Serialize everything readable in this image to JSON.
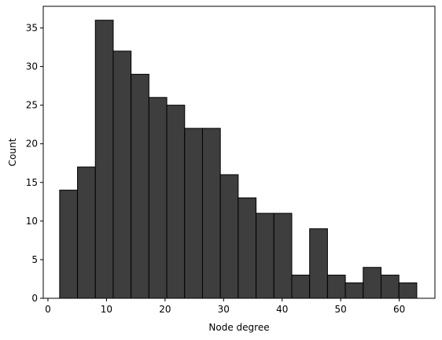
{
  "chart_data": {
    "type": "bar",
    "title": "",
    "xlabel": "Node degree",
    "ylabel": "Count",
    "xlim": [
      -0.8,
      66.1
    ],
    "ylim": [
      0,
      37.8
    ],
    "xticks": [
      0,
      10,
      20,
      30,
      40,
      50,
      60
    ],
    "yticks": [
      0,
      5,
      10,
      15,
      20,
      25,
      30,
      35
    ],
    "grid": false,
    "bar_fill": "#3e3e3e",
    "bar_edge": "#000000",
    "bins": [
      {
        "start": 2.0,
        "end": 5.05,
        "count": 14
      },
      {
        "start": 5.05,
        "end": 8.1,
        "count": 17
      },
      {
        "start": 8.1,
        "end": 11.15,
        "count": 36
      },
      {
        "start": 11.15,
        "end": 14.2,
        "count": 32
      },
      {
        "start": 14.2,
        "end": 17.25,
        "count": 29
      },
      {
        "start": 17.25,
        "end": 20.3,
        "count": 26
      },
      {
        "start": 20.3,
        "end": 23.35,
        "count": 25
      },
      {
        "start": 23.35,
        "end": 26.4,
        "count": 22
      },
      {
        "start": 26.4,
        "end": 29.45,
        "count": 22
      },
      {
        "start": 29.45,
        "end": 32.5,
        "count": 16
      },
      {
        "start": 32.5,
        "end": 35.55,
        "count": 13
      },
      {
        "start": 35.55,
        "end": 38.6,
        "count": 11
      },
      {
        "start": 38.6,
        "end": 41.65,
        "count": 11
      },
      {
        "start": 41.65,
        "end": 44.7,
        "count": 3
      },
      {
        "start": 44.7,
        "end": 47.75,
        "count": 9
      },
      {
        "start": 47.75,
        "end": 50.8,
        "count": 3
      },
      {
        "start": 50.8,
        "end": 53.85,
        "count": 2
      },
      {
        "start": 53.85,
        "end": 56.9,
        "count": 4
      },
      {
        "start": 56.9,
        "end": 59.95,
        "count": 3
      },
      {
        "start": 59.95,
        "end": 63.0,
        "count": 2
      }
    ]
  }
}
